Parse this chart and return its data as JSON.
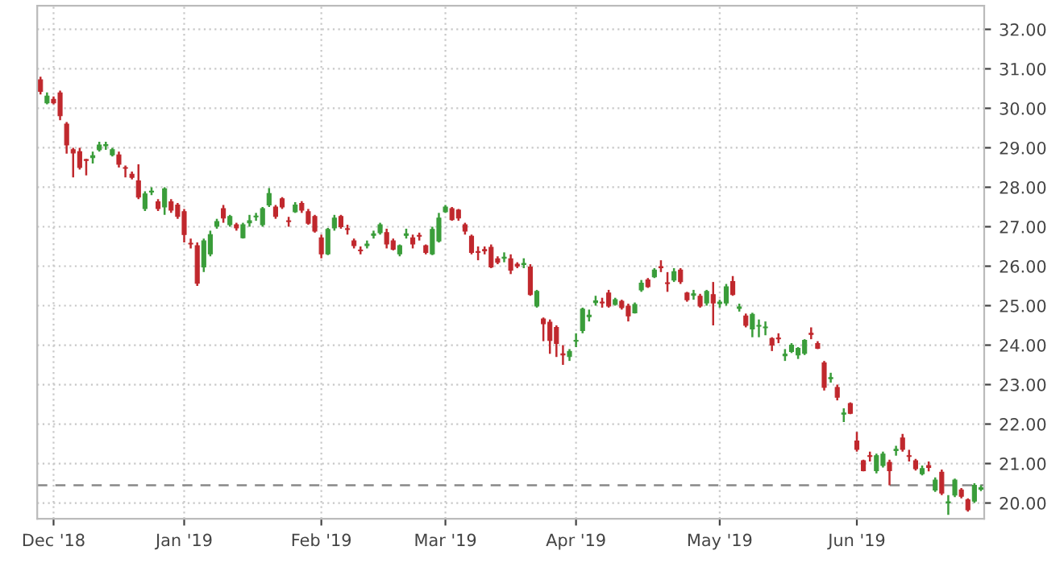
{
  "chart_data": {
    "type": "candlestick",
    "categories": [
      null,
      null,
      "Dec '18",
      null,
      null,
      null,
      null,
      null,
      null,
      null,
      null,
      null,
      null,
      null,
      null,
      null,
      null,
      null,
      null,
      null,
      null,
      null,
      "Jan '19",
      null,
      null,
      null,
      null,
      null,
      null,
      null,
      null,
      null,
      null,
      null,
      null,
      null,
      null,
      null,
      null,
      null,
      null,
      null,
      null,
      "Feb '19",
      null,
      null,
      null,
      null,
      null,
      null,
      null,
      null,
      null,
      null,
      null,
      null,
      null,
      null,
      null,
      null,
      null,
      null,
      "Mar '19",
      null,
      null,
      null,
      null,
      null,
      null,
      null,
      null,
      null,
      null,
      null,
      null,
      null,
      null,
      null,
      null,
      null,
      null,
      null,
      "Apr '19",
      null,
      null,
      null,
      null,
      null,
      null,
      null,
      null,
      null,
      null,
      null,
      null,
      null,
      null,
      null,
      null,
      null,
      null,
      null,
      null,
      null,
      "May '19",
      null,
      null,
      null,
      null,
      null,
      null,
      null,
      null,
      null,
      null,
      null,
      null,
      null,
      null,
      null,
      null,
      null,
      null,
      null,
      null,
      "Jun '19",
      null,
      null,
      null,
      null,
      null,
      null,
      null,
      null,
      null,
      null,
      null,
      null,
      null,
      null,
      null,
      null,
      null,
      null,
      null
    ],
    "ohlc": [
      [
        30.72,
        30.8,
        30.35,
        30.43
      ],
      [
        30.14,
        30.4,
        30.1,
        30.31
      ],
      [
        30.23,
        30.3,
        30.1,
        30.14
      ],
      [
        30.39,
        30.45,
        29.7,
        29.81
      ],
      [
        29.6,
        29.65,
        28.85,
        29.07
      ],
      [
        28.95,
        29.0,
        28.25,
        28.87
      ],
      [
        28.9,
        29.0,
        28.45,
        28.5
      ],
      [
        28.7,
        28.72,
        28.3,
        28.68
      ],
      [
        28.75,
        28.9,
        28.6,
        28.8
      ],
      [
        28.95,
        29.15,
        28.9,
        29.07
      ],
      [
        29.05,
        29.15,
        28.95,
        29.08
      ],
      [
        28.82,
        29.0,
        28.78,
        28.95
      ],
      [
        28.82,
        28.9,
        28.5,
        28.58
      ],
      [
        28.5,
        28.55,
        28.25,
        28.48
      ],
      [
        28.33,
        28.4,
        28.2,
        28.25
      ],
      [
        28.16,
        28.58,
        27.7,
        27.75
      ],
      [
        27.46,
        27.9,
        27.4,
        27.83
      ],
      [
        27.88,
        28.0,
        27.8,
        27.9
      ],
      [
        27.63,
        27.7,
        27.4,
        27.46
      ],
      [
        27.5,
        28.0,
        27.3,
        27.96
      ],
      [
        27.63,
        27.7,
        27.35,
        27.42
      ],
      [
        27.55,
        27.6,
        27.2,
        27.26
      ],
      [
        27.38,
        27.45,
        26.6,
        26.8
      ],
      [
        26.58,
        26.7,
        26.45,
        26.56
      ],
      [
        26.52,
        26.6,
        25.5,
        25.57
      ],
      [
        25.98,
        26.7,
        25.85,
        26.64
      ],
      [
        26.31,
        26.9,
        26.25,
        26.8
      ],
      [
        27.01,
        27.2,
        26.95,
        27.13
      ],
      [
        27.46,
        27.55,
        27.1,
        27.22
      ],
      [
        27.05,
        27.3,
        27.0,
        27.26
      ],
      [
        27.05,
        27.1,
        26.9,
        26.97
      ],
      [
        26.72,
        27.1,
        26.7,
        27.05
      ],
      [
        27.1,
        27.3,
        27.0,
        27.15
      ],
      [
        27.25,
        27.35,
        27.15,
        27.26
      ],
      [
        27.05,
        27.5,
        27.0,
        27.46
      ],
      [
        27.55,
        27.98,
        27.5,
        27.84
      ],
      [
        27.5,
        27.55,
        27.2,
        27.26
      ],
      [
        27.71,
        27.75,
        27.45,
        27.5
      ],
      [
        27.15,
        27.25,
        27.0,
        27.13
      ],
      [
        27.38,
        27.62,
        27.35,
        27.55
      ],
      [
        27.59,
        27.65,
        27.35,
        27.42
      ],
      [
        27.38,
        27.45,
        27.05,
        27.09
      ],
      [
        27.26,
        27.3,
        26.85,
        26.89
      ],
      [
        26.72,
        26.8,
        26.2,
        26.31
      ],
      [
        26.31,
        26.97,
        26.28,
        26.93
      ],
      [
        26.97,
        27.3,
        26.9,
        27.22
      ],
      [
        27.26,
        27.3,
        26.95,
        27.0
      ],
      [
        26.94,
        27.05,
        26.8,
        26.93
      ],
      [
        26.64,
        26.7,
        26.45,
        26.52
      ],
      [
        26.4,
        26.5,
        26.3,
        26.39
      ],
      [
        26.52,
        26.65,
        26.45,
        26.56
      ],
      [
        26.78,
        26.9,
        26.7,
        26.82
      ],
      [
        26.85,
        27.1,
        26.8,
        27.05
      ],
      [
        26.85,
        26.95,
        26.45,
        26.56
      ],
      [
        26.64,
        26.7,
        26.4,
        26.43
      ],
      [
        26.31,
        26.55,
        26.25,
        26.52
      ],
      [
        26.78,
        26.95,
        26.7,
        26.82
      ],
      [
        26.72,
        26.8,
        26.45,
        26.56
      ],
      [
        26.77,
        26.85,
        26.65,
        26.76
      ],
      [
        26.52,
        26.55,
        26.3,
        26.35
      ],
      [
        26.31,
        27.0,
        26.28,
        26.93
      ],
      [
        26.64,
        27.35,
        26.6,
        27.22
      ],
      [
        27.38,
        27.55,
        27.35,
        27.5
      ],
      [
        27.46,
        27.5,
        27.15,
        27.18
      ],
      [
        27.42,
        27.45,
        27.15,
        27.22
      ],
      [
        27.05,
        27.1,
        26.8,
        26.89
      ],
      [
        26.76,
        26.8,
        26.3,
        26.35
      ],
      [
        26.36,
        26.5,
        26.15,
        26.35
      ],
      [
        26.42,
        26.5,
        26.3,
        26.39
      ],
      [
        26.48,
        26.55,
        25.95,
        25.98
      ],
      [
        26.19,
        26.25,
        26.05,
        26.1
      ],
      [
        26.2,
        26.35,
        26.1,
        26.23
      ],
      [
        26.19,
        26.3,
        25.8,
        25.9
      ],
      [
        26.05,
        26.1,
        25.95,
        26.0
      ],
      [
        26.04,
        26.2,
        25.95,
        26.07
      ],
      [
        25.98,
        26.05,
        25.25,
        25.28
      ],
      [
        24.99,
        25.4,
        24.95,
        25.36
      ],
      [
        24.66,
        24.7,
        24.1,
        24.54
      ],
      [
        24.58,
        24.65,
        23.78,
        24.12
      ],
      [
        24.45,
        24.5,
        23.7,
        24.04
      ],
      [
        23.78,
        24.0,
        23.5,
        23.75
      ],
      [
        23.71,
        23.9,
        23.6,
        23.84
      ],
      [
        24.1,
        24.3,
        23.95,
        24.12
      ],
      [
        24.37,
        24.95,
        24.3,
        24.91
      ],
      [
        24.72,
        24.9,
        24.6,
        24.76
      ],
      [
        25.08,
        25.25,
        25.0,
        25.12
      ],
      [
        25.08,
        25.2,
        24.95,
        25.07
      ],
      [
        25.32,
        25.4,
        24.95,
        24.99
      ],
      [
        25.03,
        25.2,
        25.0,
        25.15
      ],
      [
        25.11,
        25.15,
        24.9,
        24.95
      ],
      [
        24.99,
        25.05,
        24.6,
        24.74
      ],
      [
        24.82,
        25.08,
        24.8,
        25.03
      ],
      [
        25.4,
        25.65,
        25.35,
        25.57
      ],
      [
        25.65,
        25.7,
        25.45,
        25.48
      ],
      [
        25.73,
        25.95,
        25.7,
        25.9
      ],
      [
        25.99,
        26.15,
        25.85,
        25.96
      ],
      [
        25.57,
        25.85,
        25.35,
        25.56
      ],
      [
        25.65,
        25.95,
        25.6,
        25.86
      ],
      [
        25.9,
        25.95,
        25.55,
        25.61
      ],
      [
        25.32,
        25.35,
        25.1,
        25.15
      ],
      [
        25.26,
        25.4,
        25.15,
        25.3
      ],
      [
        25.24,
        25.3,
        24.95,
        24.99
      ],
      [
        25.07,
        25.4,
        25.0,
        25.36
      ],
      [
        25.28,
        25.6,
        24.5,
        25.07
      ],
      [
        25.05,
        25.15,
        24.95,
        25.09
      ],
      [
        25.07,
        25.55,
        25.0,
        25.48
      ],
      [
        25.61,
        25.75,
        25.25,
        25.28
      ],
      [
        24.93,
        25.05,
        24.85,
        24.97
      ],
      [
        24.74,
        24.8,
        24.45,
        24.5
      ],
      [
        24.41,
        24.82,
        24.2,
        24.78
      ],
      [
        24.48,
        24.65,
        24.2,
        24.5
      ],
      [
        24.44,
        24.6,
        24.25,
        24.46
      ],
      [
        24.17,
        24.2,
        23.85,
        24.0
      ],
      [
        24.17,
        24.3,
        24.05,
        24.16
      ],
      [
        23.73,
        23.9,
        23.6,
        23.77
      ],
      [
        23.84,
        24.05,
        23.8,
        24.0
      ],
      [
        23.75,
        23.95,
        23.65,
        23.92
      ],
      [
        23.79,
        24.15,
        23.75,
        24.12
      ],
      [
        24.3,
        24.45,
        24.15,
        24.27
      ],
      [
        24.04,
        24.1,
        23.9,
        23.92
      ],
      [
        23.55,
        23.6,
        22.85,
        22.93
      ],
      [
        23.15,
        23.3,
        23.05,
        23.18
      ],
      [
        22.93,
        23.0,
        22.6,
        22.68
      ],
      [
        22.25,
        22.4,
        22.05,
        22.28
      ],
      [
        22.52,
        22.55,
        22.25,
        22.27
      ],
      [
        21.57,
        21.8,
        21.3,
        21.36
      ],
      [
        21.07,
        21.1,
        20.8,
        20.82
      ],
      [
        21.2,
        21.3,
        21.05,
        21.18
      ],
      [
        20.82,
        21.25,
        20.75,
        21.2
      ],
      [
        20.95,
        21.3,
        20.9,
        21.24
      ],
      [
        21.03,
        21.1,
        20.45,
        20.82
      ],
      [
        21.33,
        21.45,
        21.2,
        21.36
      ],
      [
        21.65,
        21.75,
        21.3,
        21.36
      ],
      [
        21.2,
        21.35,
        21.05,
        21.18
      ],
      [
        21.07,
        21.12,
        20.82,
        20.87
      ],
      [
        20.74,
        20.95,
        20.7,
        20.87
      ],
      [
        20.95,
        21.05,
        20.8,
        20.9
      ],
      [
        20.33,
        20.65,
        20.28,
        20.58
      ],
      [
        20.78,
        20.85,
        20.2,
        20.25
      ],
      [
        20.0,
        20.2,
        19.7,
        20.03
      ],
      [
        20.2,
        20.62,
        20.15,
        20.58
      ],
      [
        20.33,
        20.38,
        20.12,
        20.17
      ],
      [
        20.08,
        20.12,
        19.78,
        19.83
      ],
      [
        20.05,
        20.5,
        20.0,
        20.45
      ],
      [
        20.35,
        20.45,
        20.3,
        20.39
      ]
    ],
    "colors": [
      "#c0282d",
      "#3a9d3a",
      "#c0282d",
      "#c0282d",
      "#c0282d",
      "#c0282d",
      "#c0282d",
      "#c0282d",
      "#3a9d3a",
      "#3a9d3a",
      "#3a9d3a",
      "#3a9d3a",
      "#c0282d",
      "#c0282d",
      "#c0282d",
      "#c0282d",
      "#3a9d3a",
      "#3a9d3a",
      "#c0282d",
      "#3a9d3a",
      "#c0282d",
      "#c0282d",
      "#c0282d",
      "#c0282d",
      "#c0282d",
      "#3a9d3a",
      "#3a9d3a",
      "#3a9d3a",
      "#c0282d",
      "#3a9d3a",
      "#c0282d",
      "#3a9d3a",
      "#3a9d3a",
      "#3a9d3a",
      "#3a9d3a",
      "#3a9d3a",
      "#c0282d",
      "#c0282d",
      "#c0282d",
      "#3a9d3a",
      "#c0282d",
      "#c0282d",
      "#c0282d",
      "#c0282d",
      "#3a9d3a",
      "#3a9d3a",
      "#c0282d",
      "#c0282d",
      "#c0282d",
      "#c0282d",
      "#3a9d3a",
      "#3a9d3a",
      "#3a9d3a",
      "#c0282d",
      "#c0282d",
      "#3a9d3a",
      "#3a9d3a",
      "#c0282d",
      "#c0282d",
      "#c0282d",
      "#3a9d3a",
      "#3a9d3a",
      "#3a9d3a",
      "#c0282d",
      "#c0282d",
      "#c0282d",
      "#c0282d",
      "#c0282d",
      "#c0282d",
      "#c0282d",
      "#c0282d",
      "#3a9d3a",
      "#c0282d",
      "#c0282d",
      "#3a9d3a",
      "#c0282d",
      "#3a9d3a",
      "#c0282d",
      "#c0282d",
      "#c0282d",
      "#c0282d",
      "#3a9d3a",
      "#3a9d3a",
      "#3a9d3a",
      "#3a9d3a",
      "#3a9d3a",
      "#c0282d",
      "#c0282d",
      "#3a9d3a",
      "#c0282d",
      "#c0282d",
      "#3a9d3a",
      "#3a9d3a",
      "#c0282d",
      "#3a9d3a",
      "#c0282d",
      "#c0282d",
      "#3a9d3a",
      "#c0282d",
      "#c0282d",
      "#3a9d3a",
      "#c0282d",
      "#3a9d3a",
      "#c0282d",
      "#3a9d3a",
      "#3a9d3a",
      "#c0282d",
      "#3a9d3a",
      "#c0282d",
      "#3a9d3a",
      "#3a9d3a",
      "#3a9d3a",
      "#c0282d",
      "#c0282d",
      "#3a9d3a",
      "#3a9d3a",
      "#3a9d3a",
      "#3a9d3a",
      "#c0282d",
      "#c0282d",
      "#c0282d",
      "#3a9d3a",
      "#c0282d",
      "#3a9d3a",
      "#c0282d",
      "#c0282d",
      "#c0282d",
      "#c0282d",
      "#3a9d3a",
      "#3a9d3a",
      "#c0282d",
      "#3a9d3a",
      "#c0282d",
      "#c0282d",
      "#c0282d",
      "#3a9d3a",
      "#c0282d",
      "#3a9d3a",
      "#c0282d",
      "#3a9d3a",
      "#3a9d3a",
      "#c0282d",
      "#c0282d",
      "#3a9d3a",
      "#3a9d3a"
    ],
    "ylim": [
      19.6,
      32.6
    ],
    "yticks": [
      {
        "value": 20,
        "label": "20.00"
      },
      {
        "value": 21,
        "label": "21.00"
      },
      {
        "value": 22,
        "label": "22.00"
      },
      {
        "value": 23,
        "label": "23.00"
      },
      {
        "value": 24,
        "label": "24.00"
      },
      {
        "value": 25,
        "label": "25.00"
      },
      {
        "value": 26,
        "label": "26.00"
      },
      {
        "value": 27,
        "label": "27.00"
      },
      {
        "value": 28,
        "label": "28.00"
      },
      {
        "value": 29,
        "label": "29.00"
      },
      {
        "value": 30,
        "label": "30.00"
      },
      {
        "value": 31,
        "label": "31.00"
      },
      {
        "value": 32,
        "label": "32.00"
      }
    ],
    "ref_lines": [
      {
        "axis": "y",
        "value": 20.45,
        "color": "#888888",
        "line_style": "dashed"
      }
    ],
    "grid": true
  }
}
